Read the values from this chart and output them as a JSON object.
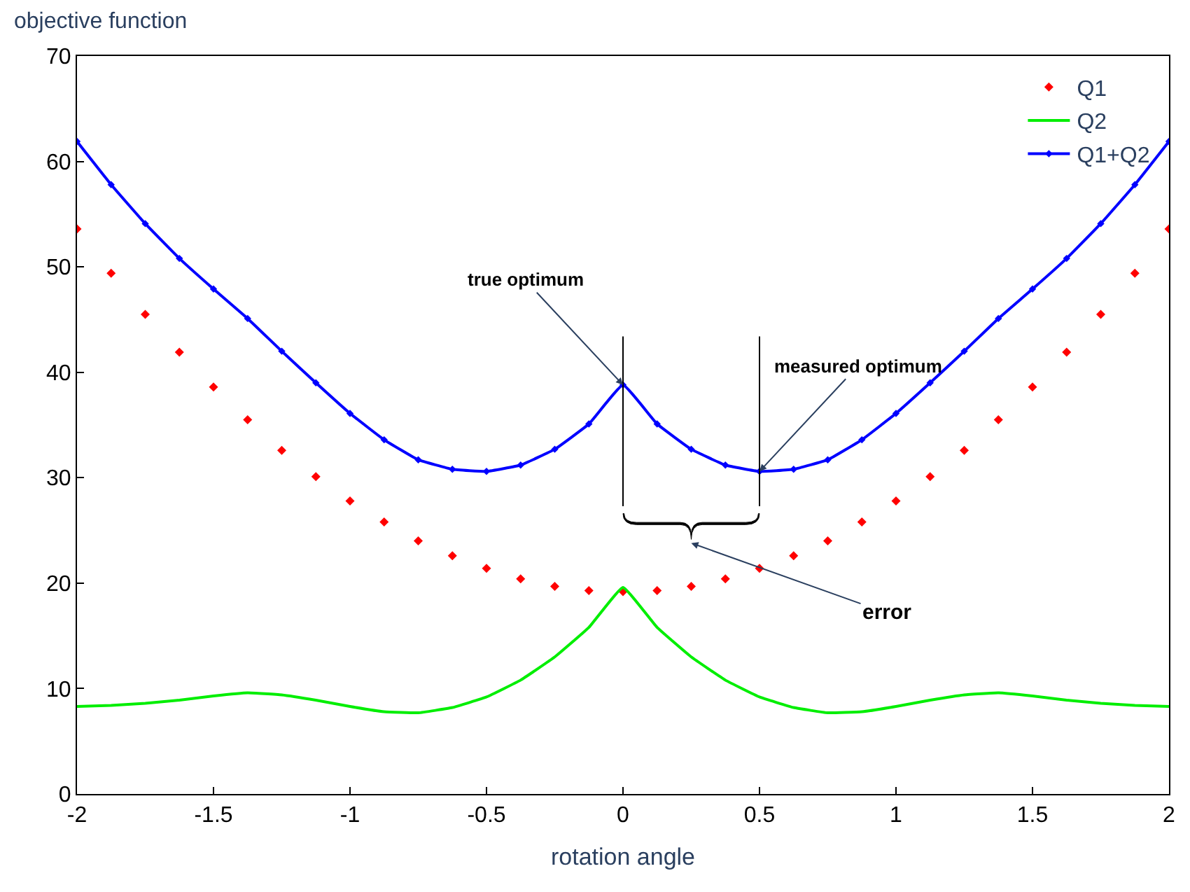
{
  "chart_data": {
    "type": "line",
    "xlabel": "rotation angle",
    "ylabel": "objective function",
    "x": [
      -2,
      -1.875,
      -1.75,
      -1.625,
      -1.5,
      -1.375,
      -1.25,
      -1.125,
      -1,
      -0.875,
      -0.75,
      -0.625,
      -0.5,
      -0.375,
      -0.25,
      -0.125,
      0,
      0.125,
      0.25,
      0.375,
      0.5,
      0.625,
      0.75,
      0.875,
      1,
      1.125,
      1.25,
      1.375,
      1.5,
      1.625,
      1.75,
      1.875,
      2
    ],
    "series": [
      {
        "name": "Q1",
        "type": "scatter",
        "color": "#ff0000",
        "marker": "diamond",
        "values": [
          53.6,
          49.4,
          45.5,
          41.9,
          38.6,
          35.5,
          32.6,
          30.1,
          27.8,
          25.8,
          24.0,
          22.6,
          21.4,
          20.4,
          19.7,
          19.3,
          19.2,
          19.3,
          19.7,
          20.4,
          21.4,
          22.6,
          24.0,
          25.8,
          27.8,
          30.1,
          32.6,
          35.5,
          38.6,
          41.9,
          45.5,
          49.4,
          53.6
        ]
      },
      {
        "name": "Q2",
        "color": "#00ee00",
        "marker": "none",
        "values": [
          8.3,
          8.4,
          8.6,
          8.9,
          9.3,
          9.6,
          9.4,
          8.9,
          8.3,
          7.8,
          7.7,
          8.2,
          9.2,
          10.8,
          13.0,
          15.8,
          19.6,
          15.8,
          13.0,
          10.8,
          9.2,
          8.2,
          7.7,
          7.8,
          8.3,
          8.9,
          9.4,
          9.6,
          9.3,
          8.9,
          8.6,
          8.4,
          8.3
        ]
      },
      {
        "name": "Q1+Q2",
        "color": "#0000ff",
        "marker": "diamond",
        "values": [
          61.9,
          57.8,
          54.1,
          50.8,
          47.9,
          45.1,
          42.0,
          39.0,
          36.1,
          33.6,
          31.7,
          30.8,
          30.6,
          31.2,
          32.7,
          35.1,
          38.8,
          35.1,
          32.7,
          31.2,
          30.6,
          30.8,
          31.7,
          33.6,
          36.1,
          39.0,
          42.0,
          45.1,
          47.9,
          50.8,
          54.1,
          57.8,
          61.9
        ]
      }
    ],
    "xlim": [
      -2,
      2
    ],
    "xticks": [
      -2,
      -1.5,
      -1,
      -0.5,
      0,
      0.5,
      1,
      1.5,
      2
    ],
    "ylim": [
      0,
      70
    ],
    "yticks": [
      0,
      10,
      20,
      30,
      40,
      50,
      60,
      70
    ],
    "legend": "top right",
    "annotations": [
      {
        "text": "true optimum",
        "x": 0,
        "y": 38.8
      },
      {
        "text": "measured optimum",
        "x": 0.5,
        "y": 30.6
      },
      "error"
    ],
    "ref_lines": [
      {
        "axis": "x",
        "value": 0
      },
      {
        "axis": "x",
        "value": 0.5
      }
    ]
  }
}
